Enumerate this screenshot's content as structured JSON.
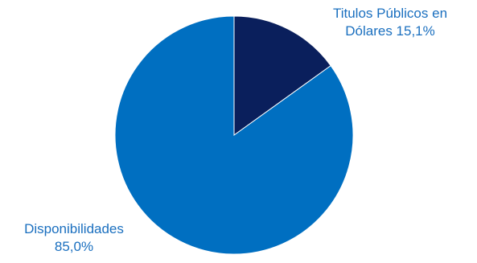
{
  "chart_data": {
    "type": "pie",
    "title": "",
    "slices": [
      {
        "label": "Títulos Públicos en Dólares",
        "label_line1": "Titulos Públicos en",
        "label_line2": "Dólares 15,1%",
        "value": 15.1,
        "color": "#0a1f5c"
      },
      {
        "label": "Disponibilidades",
        "label_line1": "Disponibilidades",
        "label_line2": "85,0%",
        "value": 85.0,
        "color": "#006fc1"
      }
    ],
    "label_color": "#1a6fbf",
    "start_angle_deg": 0,
    "direction": "clockwise"
  }
}
